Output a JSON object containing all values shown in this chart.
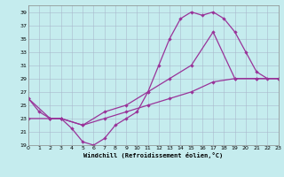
{
  "xlabel": "Windchill (Refroidissement éolien,°C)",
  "xlim": [
    0,
    23
  ],
  "ylim": [
    19,
    40
  ],
  "xticks": [
    0,
    1,
    2,
    3,
    4,
    5,
    6,
    7,
    8,
    9,
    10,
    11,
    12,
    13,
    14,
    15,
    16,
    17,
    18,
    19,
    20,
    21,
    22,
    23
  ],
  "yticks": [
    19,
    21,
    23,
    25,
    27,
    29,
    31,
    33,
    35,
    37,
    39
  ],
  "background_color": "#c5ecee",
  "grid_color": "#aab8cc",
  "line_color": "#993399",
  "curve1_x": [
    0,
    1,
    2,
    3,
    4,
    5,
    6,
    7,
    8,
    9,
    10,
    11,
    12,
    13,
    14,
    15,
    16,
    17,
    18,
    19,
    20,
    21,
    22,
    23
  ],
  "curve1_y": [
    26,
    24,
    23,
    23,
    21.5,
    19.5,
    19,
    20,
    22,
    23,
    24,
    27,
    31,
    35,
    38,
    39,
    38.5,
    39,
    38,
    36,
    33,
    30,
    29,
    29
  ],
  "curve2_x": [
    0,
    2,
    3,
    5,
    7,
    9,
    11,
    13,
    15,
    17,
    19,
    21,
    23
  ],
  "curve2_y": [
    23,
    23,
    23,
    22,
    23,
    24,
    25,
    26,
    27,
    28.5,
    29,
    29,
    29
  ],
  "curve3_x": [
    0,
    2,
    3,
    5,
    7,
    9,
    11,
    13,
    15,
    17,
    19,
    21,
    23
  ],
  "curve3_y": [
    26,
    23,
    23,
    22,
    24,
    25,
    27,
    29,
    31,
    36,
    29,
    29,
    29
  ]
}
